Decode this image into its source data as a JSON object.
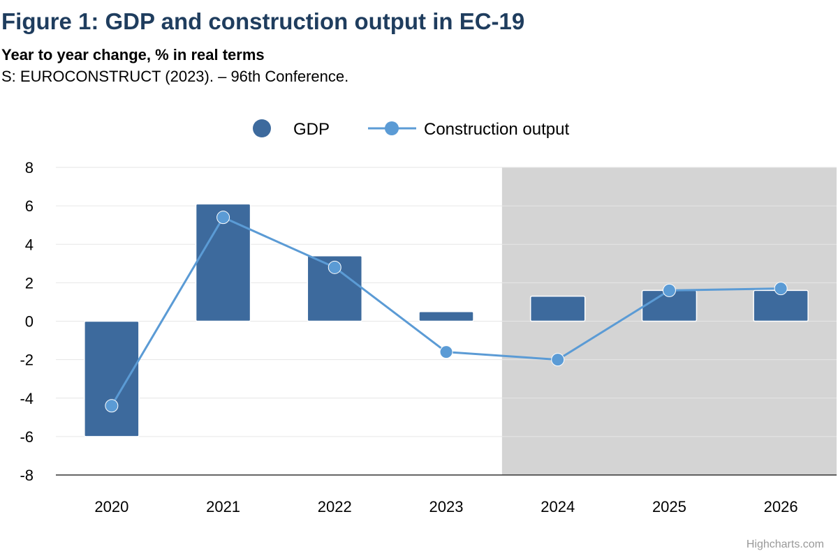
{
  "title": "Figure 1: GDP and construction output in EC-19",
  "subtitle": "Year to year change, % in real terms",
  "source": "S: EUROCONSTRUCT (2023). – 96th Conference.",
  "credits": "Highcharts.com",
  "colors": {
    "title": "#1f3d5e",
    "gdp": "#3d6a9d",
    "construction": "#5b9bd5",
    "forecast_band": "#d4d4d4",
    "grid": "#e6e6e6"
  },
  "chart_data": {
    "type": "bar",
    "categories": [
      "2020",
      "2021",
      "2022",
      "2023",
      "2024",
      "2025",
      "2026"
    ],
    "series": [
      {
        "name": "GDP",
        "type": "bar",
        "values": [
          -6.0,
          6.1,
          3.4,
          0.5,
          1.3,
          1.6,
          1.6
        ]
      },
      {
        "name": "Construction output",
        "type": "line",
        "values": [
          -4.4,
          5.4,
          2.8,
          -1.6,
          -2.0,
          1.6,
          1.7
        ]
      }
    ],
    "ylim": [
      -8,
      8
    ],
    "yticks": [
      -8,
      -6,
      -4,
      -2,
      0,
      2,
      4,
      6,
      8
    ],
    "grid": true,
    "legend_position": "top-center",
    "shaded_from_category": "2024"
  }
}
